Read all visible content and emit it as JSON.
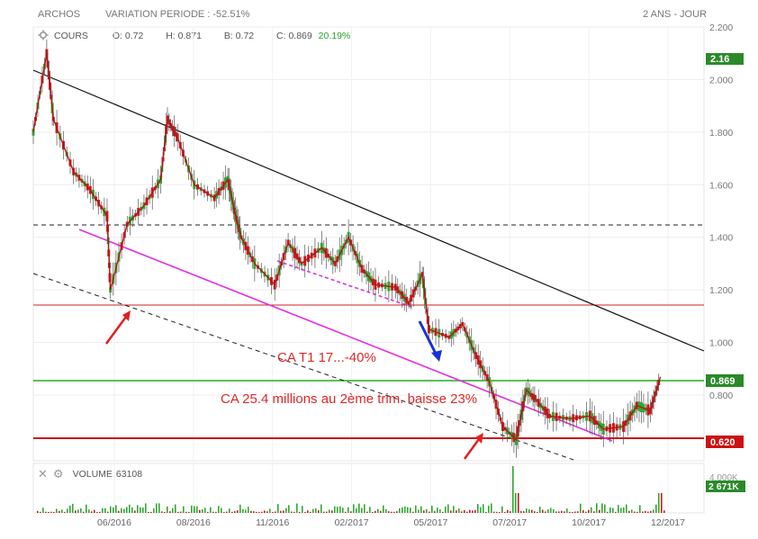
{
  "header": {
    "ticker": "ARCHOS",
    "variation_label": "VARIATION PERIODE : -52.51%",
    "period": "2 ANS - JOUR"
  },
  "price_panel": {
    "label": "COURS",
    "o": "O: 0.72",
    "h": "H: 0.871",
    "b": "B: 0.72",
    "c_label": "C: 0.869",
    "c_change": "20.19%",
    "tags": {
      "top": "2.16",
      "current": "0.869",
      "support": "0.620"
    }
  },
  "volume_panel": {
    "label": "VOLUME",
    "value": "63108",
    "axis_label": "4.000K",
    "tag": "2 671K"
  },
  "annotations": {
    "a1": "CA T1 17...-40%",
    "a2": "CA 25.4 millions au 2ème trim. baisse 23%"
  },
  "chart_data": {
    "type": "candlestick",
    "ylim": [
      0.55,
      2.2
    ],
    "y_ticks": [
      "2.200",
      "2.000",
      "1.800",
      "1.600",
      "1.400",
      "1.200",
      "1.000",
      "0.800"
    ],
    "y_tick_values": [
      2.2,
      2.0,
      1.8,
      1.6,
      1.4,
      1.2,
      1.0,
      0.8
    ],
    "x_ticks": [
      "06/2016",
      "08/2016",
      "11/2016",
      "02/2017",
      "05/2017",
      "07/2017",
      "10/2017",
      "12/2017"
    ],
    "trend_path": [
      [
        0,
        1.8
      ],
      [
        0.02,
        2.1
      ],
      [
        0.03,
        1.85
      ],
      [
        0.06,
        1.65
      ],
      [
        0.085,
        1.58
      ],
      [
        0.11,
        1.48
      ],
      [
        0.115,
        1.2
      ],
      [
        0.14,
        1.45
      ],
      [
        0.165,
        1.52
      ],
      [
        0.19,
        1.62
      ],
      [
        0.2,
        1.85
      ],
      [
        0.215,
        1.78
      ],
      [
        0.24,
        1.6
      ],
      [
        0.27,
        1.55
      ],
      [
        0.29,
        1.62
      ],
      [
        0.3,
        1.5
      ],
      [
        0.31,
        1.4
      ],
      [
        0.33,
        1.3
      ],
      [
        0.36,
        1.22
      ],
      [
        0.38,
        1.38
      ],
      [
        0.4,
        1.3
      ],
      [
        0.43,
        1.36
      ],
      [
        0.45,
        1.3
      ],
      [
        0.47,
        1.4
      ],
      [
        0.49,
        1.28
      ],
      [
        0.51,
        1.22
      ],
      [
        0.54,
        1.21
      ],
      [
        0.56,
        1.15
      ],
      [
        0.58,
        1.26
      ],
      [
        0.59,
        1.05
      ],
      [
        0.62,
        1.02
      ],
      [
        0.64,
        1.07
      ],
      [
        0.66,
        0.95
      ],
      [
        0.68,
        0.85
      ],
      [
        0.7,
        0.68
      ],
      [
        0.72,
        0.63
      ],
      [
        0.735,
        0.82
      ],
      [
        0.75,
        0.78
      ],
      [
        0.77,
        0.72
      ],
      [
        0.8,
        0.71
      ],
      [
        0.83,
        0.72
      ],
      [
        0.85,
        0.67
      ],
      [
        0.88,
        0.68
      ],
      [
        0.9,
        0.76
      ],
      [
        0.92,
        0.74
      ],
      [
        0.935,
        0.869
      ]
    ],
    "support_levels": [
      1.49,
      1.17,
      0.869,
      0.62
    ],
    "volume_spike": 4.0
  }
}
